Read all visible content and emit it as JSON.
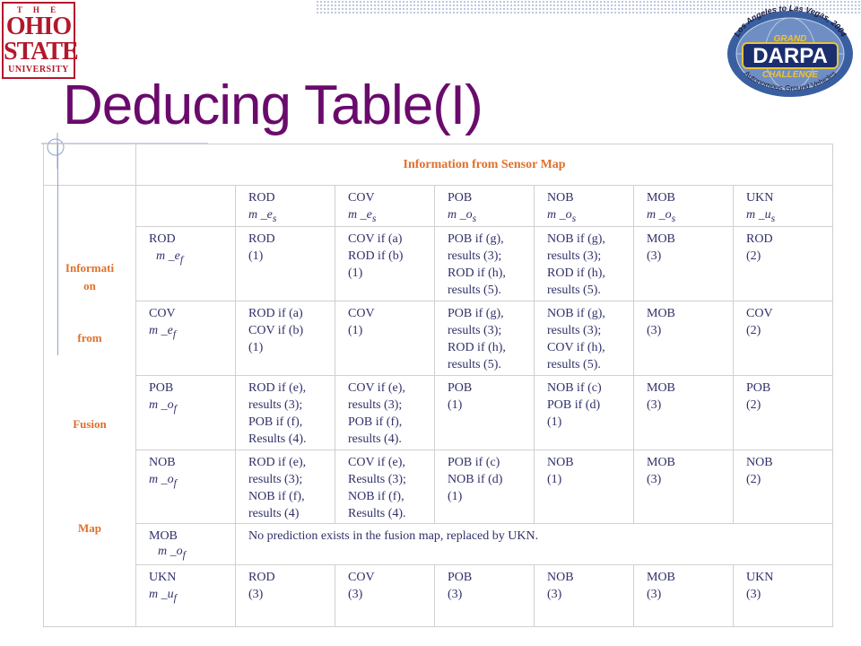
{
  "slide": {
    "title": "Deducing Table(I)",
    "logo_left": {
      "the": "T H E",
      "line1": "OHIO",
      "line2": "STATE",
      "line3": "UNIVERSITY"
    },
    "logo_right": {
      "top_arc": "Los Angeles to Las Vegas, 2004",
      "grand": "GRAND",
      "darpa": "DARPA",
      "challenge": "CHALLENGE",
      "bottom_arc": "Autonomous Ground Vehicles"
    }
  },
  "table": {
    "sensor_header": "Information from Sensor Map",
    "fusion_side": [
      "Informati",
      "on",
      "from",
      "Fusion",
      "Map"
    ],
    "columns": [
      {
        "label": "ROD",
        "symbol": "m _e",
        "sub": "s"
      },
      {
        "label": "COV",
        "symbol": "m _e",
        "sub": "s"
      },
      {
        "label": "POB",
        "symbol": "m _o",
        "sub": "s"
      },
      {
        "label": "NOB",
        "symbol": "m _o",
        "sub": "s"
      },
      {
        "label": "MOB",
        "symbol": "m _o",
        "sub": "s"
      },
      {
        "label": "UKN",
        "symbol": "m _u",
        "sub": "s"
      }
    ],
    "rows": [
      {
        "label": "ROD",
        "symbol": "m _e",
        "sub": "f",
        "cells": [
          "ROD\n(1)",
          "COV if (a)\nROD if (b)\n(1)",
          "POB if (g),\nresults (3);\nROD if (h),\nresults (5).",
          "NOB if (g),\nresults (3);\nROD if (h),\nresults (5).",
          "MOB\n(3)",
          "ROD\n(2)"
        ]
      },
      {
        "label": "COV",
        "symbol": "m _e",
        "sub": "f",
        "cells": [
          "ROD if (a)\nCOV if (b)\n(1)",
          "COV\n(1)",
          "POB if (g),\nresults (3);\nROD if (h),\nresults (5).",
          "NOB if (g),\nresults (3);\nCOV if (h),\nresults (5).",
          "MOB\n(3)",
          "COV\n(2)"
        ]
      },
      {
        "label": "POB",
        "symbol": "m _o",
        "sub": "f",
        "cells": [
          "ROD if (e),\nresults (3);\nPOB if (f),\nResults (4).",
          "COV if (e),\nresults (3);\nPOB if (f),\nresults (4).",
          "POB\n(1)",
          "NOB if (c)\nPOB if (d)\n(1)",
          "MOB\n(3)",
          "POB\n(2)"
        ]
      },
      {
        "label": "NOB",
        "symbol": "m _o",
        "sub": "f",
        "cells": [
          "ROD if (e),\nresults (3);\nNOB if (f),\nresults (4)",
          "COV if (e),\nResults (3);\nNOB if (f),\nResults (4).",
          "POB if (c)\nNOB if (d)\n(1)",
          "NOB\n(1)",
          "MOB\n(3)",
          "NOB\n(2)"
        ]
      },
      {
        "label": "UKN",
        "symbol": "m _u",
        "sub": "f",
        "cells": [
          "ROD\n(3)",
          "COV\n(3)",
          "POB\n(3)",
          "NOB\n(3)",
          "MOB\n(3)",
          "UKN\n(3)"
        ]
      }
    ],
    "mob_row": {
      "label": "MOB",
      "symbol": "m _o",
      "sub": "f",
      "text": "No prediction exists in the fusion map, replaced by UKN."
    }
  },
  "colors": {
    "title": "#6a0a6c",
    "table_text": "#30306a",
    "header_text": "#e0702a",
    "osu_red": "#b2182b"
  }
}
